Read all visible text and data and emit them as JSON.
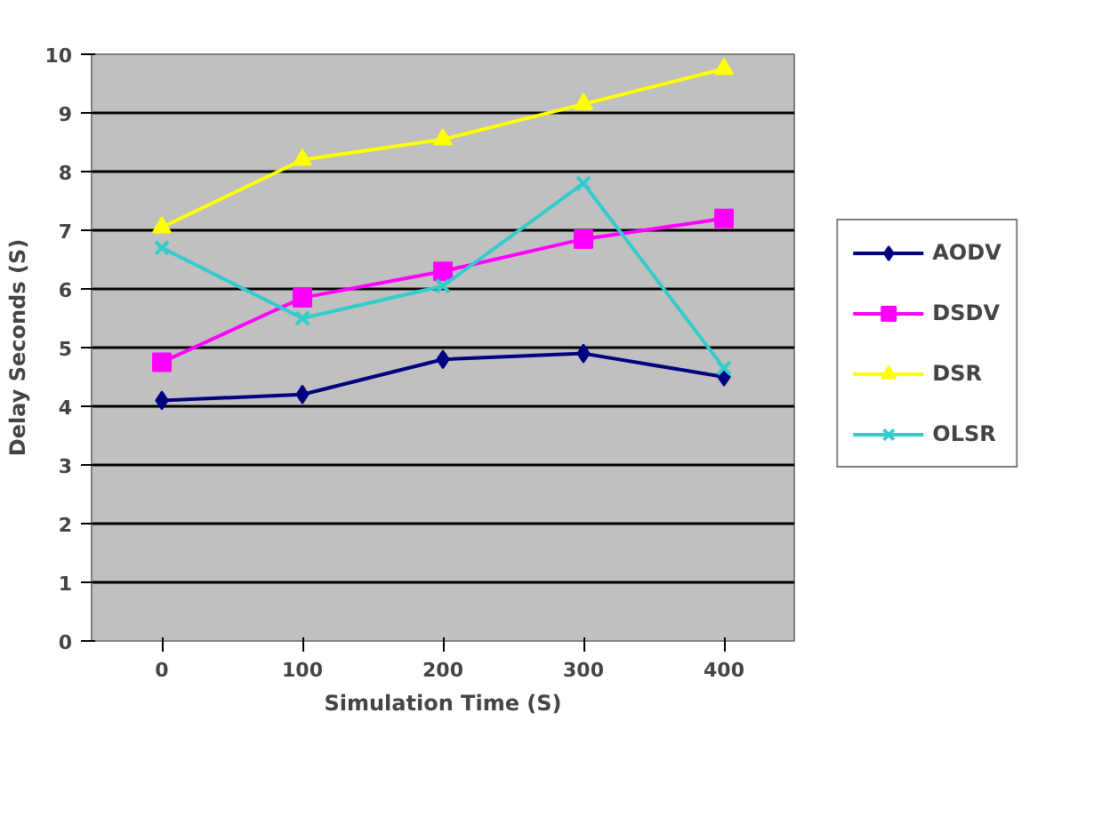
{
  "chart_data": {
    "type": "line",
    "xlabel": "Simulation Time (S)",
    "ylabel": "Delay Seconds (S)",
    "categories": [
      "0",
      "100",
      "200",
      "300",
      "400"
    ],
    "series": [
      {
        "name": "AODV",
        "color": "#000080",
        "marker": "diamond",
        "values": [
          4.1,
          4.2,
          4.8,
          4.9,
          4.5
        ]
      },
      {
        "name": "DSDV",
        "color": "#ff00ff",
        "marker": "square",
        "values": [
          4.75,
          5.85,
          6.3,
          6.85,
          7.2
        ]
      },
      {
        "name": "DSR",
        "color": "#ffff00",
        "marker": "triangle",
        "values": [
          7.05,
          8.2,
          8.55,
          9.15,
          9.75
        ]
      },
      {
        "name": "OLSR",
        "color": "#33cccc",
        "marker": "cross",
        "values": [
          6.7,
          5.5,
          6.05,
          7.8,
          4.65
        ]
      }
    ],
    "ylim": [
      0,
      10
    ],
    "yticks": [
      0,
      1,
      2,
      3,
      4,
      5,
      6,
      7,
      8,
      9,
      10
    ],
    "grid": "y",
    "legend": "right"
  }
}
